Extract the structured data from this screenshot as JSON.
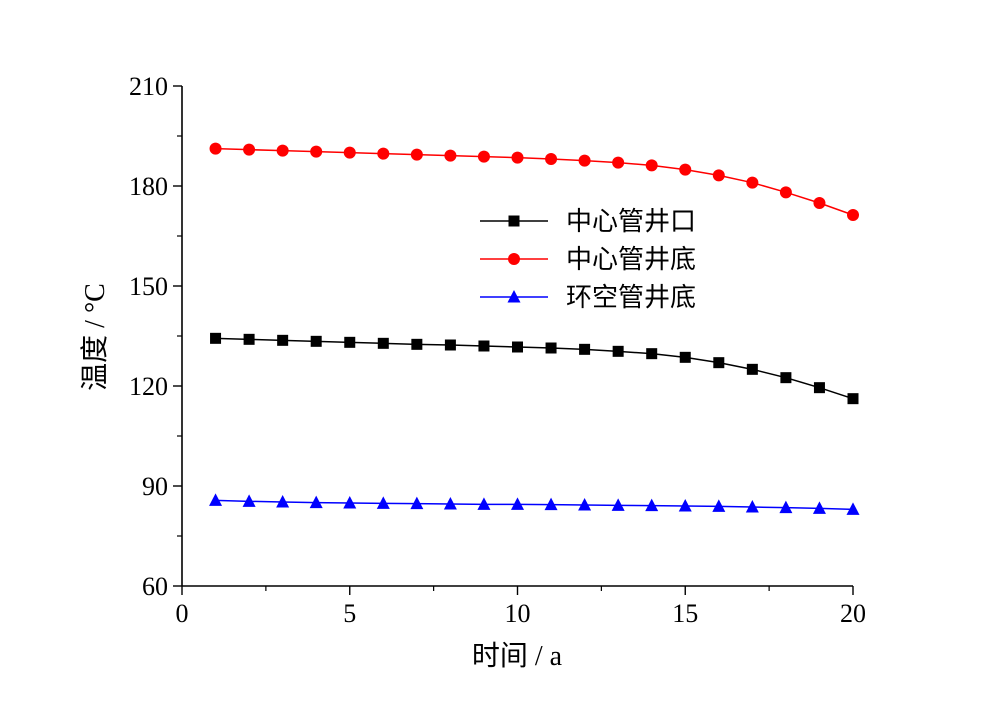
{
  "chart_data": {
    "type": "line",
    "title": "",
    "xlabel": "时间 / a",
    "ylabel": "温度 / °C",
    "xlim": [
      0,
      20
    ],
    "ylim": [
      60,
      210
    ],
    "xticks": [
      0,
      5,
      10,
      15,
      20
    ],
    "yticks": [
      60,
      90,
      120,
      150,
      180,
      210
    ],
    "grid": false,
    "legend_position": "center-right",
    "x": [
      1,
      2,
      3,
      4,
      5,
      6,
      7,
      8,
      9,
      10,
      11,
      12,
      13,
      14,
      15,
      16,
      17,
      18,
      19,
      20
    ],
    "series": [
      {
        "name": "中心管井口",
        "color": "#000000",
        "marker": "square",
        "values": [
          134.3,
          134.0,
          133.7,
          133.4,
          133.1,
          132.8,
          132.5,
          132.3,
          132.0,
          131.7,
          131.4,
          131.0,
          130.4,
          129.7,
          128.6,
          127.0,
          125.0,
          122.5,
          119.5,
          116.2
        ]
      },
      {
        "name": "中心管井底",
        "color": "#ff0000",
        "marker": "circle",
        "values": [
          191.2,
          190.9,
          190.6,
          190.3,
          190.0,
          189.7,
          189.4,
          189.1,
          188.8,
          188.5,
          188.1,
          187.6,
          187.0,
          186.2,
          184.9,
          183.2,
          181.0,
          178.1,
          174.9,
          171.3
        ]
      },
      {
        "name": "环空管井底",
        "color": "#0000ff",
        "marker": "triangle",
        "values": [
          85.7,
          85.4,
          85.2,
          85.0,
          84.9,
          84.8,
          84.7,
          84.6,
          84.5,
          84.5,
          84.4,
          84.3,
          84.2,
          84.1,
          84.0,
          83.9,
          83.7,
          83.5,
          83.3,
          83.0
        ]
      }
    ]
  }
}
